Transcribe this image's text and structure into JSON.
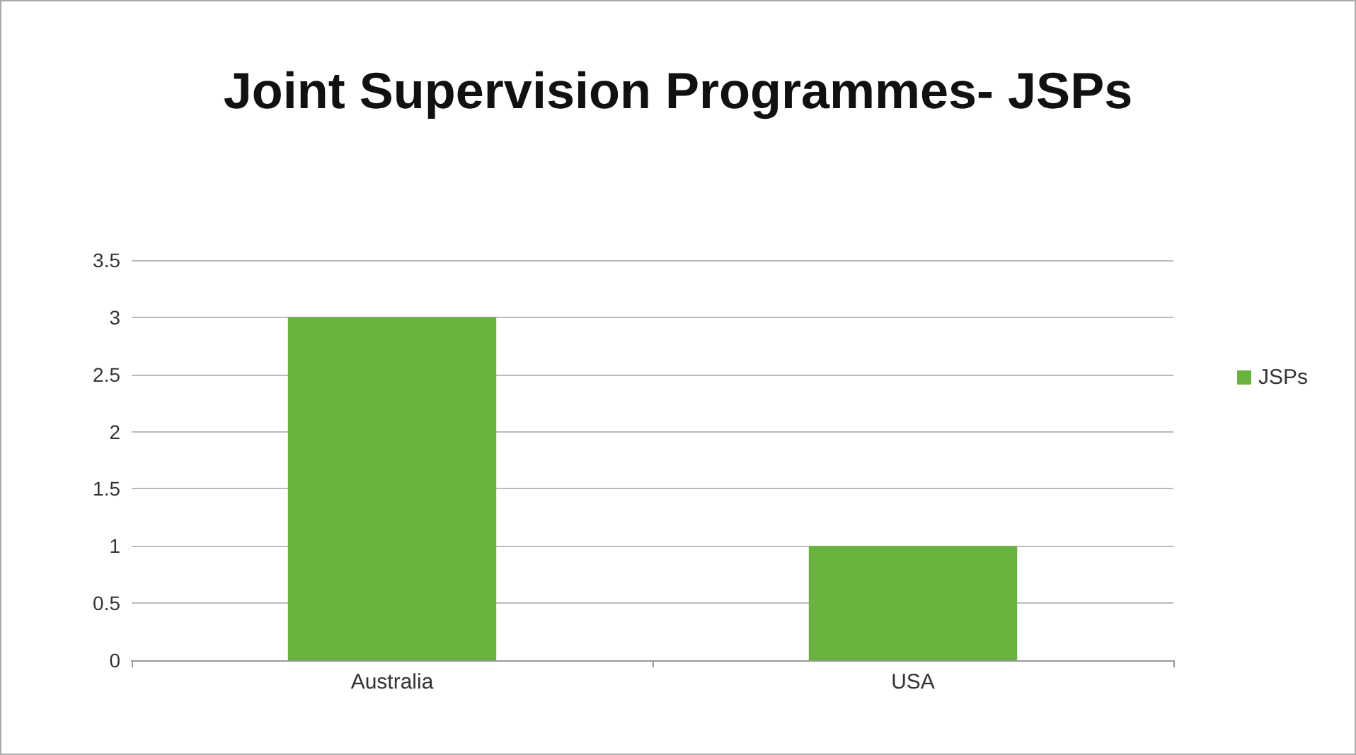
{
  "chart_data": {
    "type": "bar",
    "title": "Joint Supervision Programmes- JSPs",
    "categories": [
      "Australia",
      "USA"
    ],
    "series": [
      {
        "name": "JSPs",
        "color": "#6ab23e",
        "values": [
          3,
          1
        ]
      }
    ],
    "ylim": [
      0,
      3.5
    ],
    "yticks": [
      0,
      0.5,
      1,
      1.5,
      2,
      2.5,
      3,
      3.5
    ],
    "grid": "y",
    "legend": "right"
  }
}
